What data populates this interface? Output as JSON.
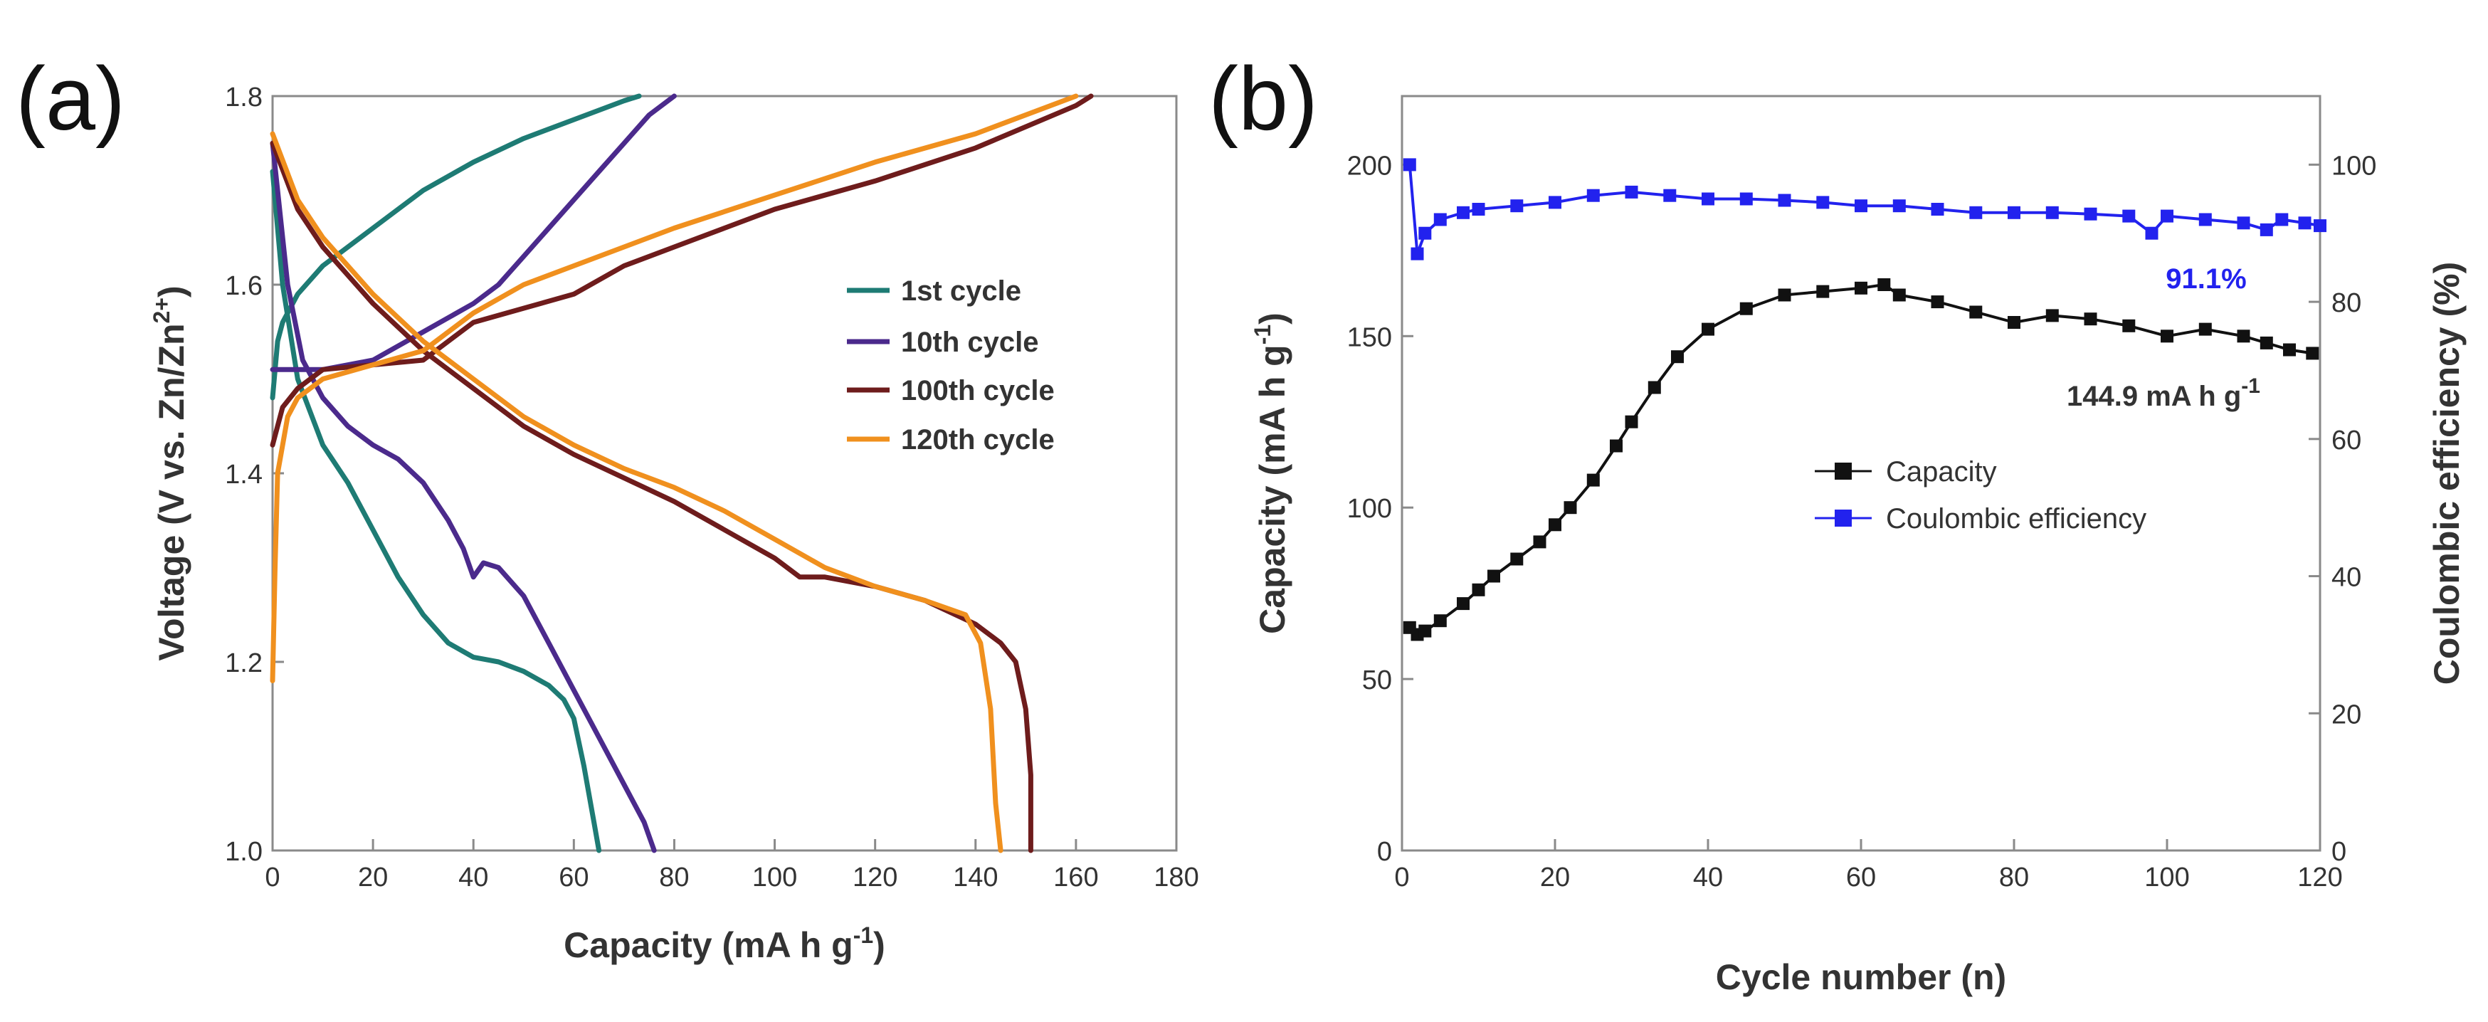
{
  "chart_data": [
    {
      "panel": "(a)",
      "type": "line",
      "xlabel": "Capacity (mA h g",
      "xlabel_sup": "-1",
      "xlabel_end": ")",
      "ylabel": "Voltage (V vs. Zn/Zn",
      "ylabel_sup": "2+",
      "ylabel_end": ")",
      "xlim": [
        0,
        180
      ],
      "ylim": [
        1.0,
        1.8
      ],
      "xticks": [
        0,
        20,
        40,
        60,
        80,
        100,
        120,
        140,
        160,
        180
      ],
      "yticks": [
        1.0,
        1.2,
        1.4,
        1.6,
        1.8
      ],
      "legend_position": "center-right",
      "series": [
        {
          "name": "1st cycle",
          "color": "#1e7b74",
          "discharge": [
            [
              0,
              1.72
            ],
            [
              2,
              1.6
            ],
            [
              5,
              1.5
            ],
            [
              10,
              1.43
            ],
            [
              15,
              1.39
            ],
            [
              20,
              1.34
            ],
            [
              25,
              1.29
            ],
            [
              30,
              1.25
            ],
            [
              35,
              1.22
            ],
            [
              40,
              1.205
            ],
            [
              45,
              1.2
            ],
            [
              50,
              1.19
            ],
            [
              55,
              1.175
            ],
            [
              58,
              1.16
            ],
            [
              60,
              1.14
            ],
            [
              62,
              1.09
            ],
            [
              64,
              1.03
            ],
            [
              65,
              1.0
            ]
          ],
          "charge": [
            [
              0,
              1.48
            ],
            [
              1,
              1.54
            ],
            [
              2,
              1.56
            ],
            [
              5,
              1.59
            ],
            [
              10,
              1.62
            ],
            [
              20,
              1.66
            ],
            [
              30,
              1.7
            ],
            [
              40,
              1.73
            ],
            [
              50,
              1.755
            ],
            [
              60,
              1.775
            ],
            [
              70,
              1.795
            ],
            [
              73,
              1.8
            ]
          ]
        },
        {
          "name": "10th cycle",
          "color": "#4b2a8c",
          "discharge": [
            [
              0,
              1.75
            ],
            [
              3,
              1.6
            ],
            [
              6,
              1.52
            ],
            [
              10,
              1.48
            ],
            [
              15,
              1.45
            ],
            [
              20,
              1.43
            ],
            [
              25,
              1.415
            ],
            [
              30,
              1.39
            ],
            [
              35,
              1.35
            ],
            [
              38,
              1.32
            ],
            [
              40,
              1.29
            ],
            [
              42,
              1.305
            ],
            [
              45,
              1.3
            ],
            [
              50,
              1.27
            ],
            [
              55,
              1.22
            ],
            [
              60,
              1.17
            ],
            [
              65,
              1.12
            ],
            [
              70,
              1.07
            ],
            [
              74,
              1.03
            ],
            [
              76,
              1.0
            ]
          ],
          "charge": [
            [
              0,
              1.51
            ],
            [
              10,
              1.51
            ],
            [
              20,
              1.52
            ],
            [
              30,
              1.55
            ],
            [
              40,
              1.58
            ],
            [
              45,
              1.6
            ],
            [
              50,
              1.63
            ],
            [
              55,
              1.66
            ],
            [
              60,
              1.69
            ],
            [
              65,
              1.72
            ],
            [
              70,
              1.75
            ],
            [
              75,
              1.78
            ],
            [
              80,
              1.8
            ]
          ]
        },
        {
          "name": "100th cycle",
          "color": "#6e1c1c",
          "discharge": [
            [
              0,
              1.75
            ],
            [
              5,
              1.68
            ],
            [
              10,
              1.64
            ],
            [
              20,
              1.58
            ],
            [
              30,
              1.53
            ],
            [
              40,
              1.49
            ],
            [
              50,
              1.45
            ],
            [
              60,
              1.42
            ],
            [
              70,
              1.395
            ],
            [
              80,
              1.37
            ],
            [
              90,
              1.34
            ],
            [
              100,
              1.31
            ],
            [
              105,
              1.29
            ],
            [
              110,
              1.29
            ],
            [
              120,
              1.28
            ],
            [
              130,
              1.265
            ],
            [
              140,
              1.24
            ],
            [
              145,
              1.22
            ],
            [
              148,
              1.2
            ],
            [
              150,
              1.15
            ],
            [
              151,
              1.08
            ],
            [
              151,
              1.0
            ]
          ],
          "charge": [
            [
              0,
              1.43
            ],
            [
              2,
              1.47
            ],
            [
              5,
              1.49
            ],
            [
              10,
              1.51
            ],
            [
              20,
              1.515
            ],
            [
              30,
              1.52
            ],
            [
              35,
              1.54
            ],
            [
              40,
              1.56
            ],
            [
              50,
              1.575
            ],
            [
              60,
              1.59
            ],
            [
              70,
              1.62
            ],
            [
              80,
              1.64
            ],
            [
              90,
              1.66
            ],
            [
              100,
              1.68
            ],
            [
              120,
              1.71
            ],
            [
              140,
              1.745
            ],
            [
              160,
              1.79
            ],
            [
              163,
              1.8
            ]
          ]
        },
        {
          "name": "120th cycle",
          "color": "#f0901e",
          "discharge": [
            [
              0,
              1.76
            ],
            [
              5,
              1.69
            ],
            [
              10,
              1.65
            ],
            [
              20,
              1.59
            ],
            [
              30,
              1.54
            ],
            [
              40,
              1.5
            ],
            [
              50,
              1.46
            ],
            [
              60,
              1.43
            ],
            [
              70,
              1.405
            ],
            [
              80,
              1.385
            ],
            [
              90,
              1.36
            ],
            [
              100,
              1.33
            ],
            [
              110,
              1.3
            ],
            [
              120,
              1.28
            ],
            [
              130,
              1.265
            ],
            [
              138,
              1.25
            ],
            [
              141,
              1.22
            ],
            [
              143,
              1.15
            ],
            [
              144,
              1.05
            ],
            [
              145,
              1.0
            ]
          ],
          "charge": [
            [
              0,
              1.18
            ],
            [
              0.5,
              1.3
            ],
            [
              1,
              1.4
            ],
            [
              3,
              1.46
            ],
            [
              5,
              1.48
            ],
            [
              10,
              1.5
            ],
            [
              20,
              1.515
            ],
            [
              30,
              1.53
            ],
            [
              40,
              1.57
            ],
            [
              50,
              1.6
            ],
            [
              60,
              1.62
            ],
            [
              80,
              1.66
            ],
            [
              100,
              1.695
            ],
            [
              120,
              1.73
            ],
            [
              140,
              1.76
            ],
            [
              160,
              1.8
            ]
          ]
        }
      ]
    },
    {
      "panel": "(b)",
      "type": "scatter",
      "xlabel": "Cycle number (n)",
      "ylabel": "Capacity (mA h g",
      "ylabel_sup": "-1",
      "ylabel_end": ")",
      "y2label": "Coulombic efficiency (%)",
      "xlim": [
        0,
        120
      ],
      "ylim": [
        0,
        220
      ],
      "y2lim": [
        0,
        110
      ],
      "xticks": [
        0,
        20,
        40,
        60,
        80,
        100,
        120
      ],
      "yticks": [
        0,
        50,
        100,
        150,
        200
      ],
      "y2ticks": [
        0,
        20,
        40,
        60,
        80,
        100
      ],
      "legend_position": "center-right",
      "series": [
        {
          "name": "Capacity",
          "color": "#111111",
          "axis": "left",
          "points": [
            [
              1,
              65
            ],
            [
              2,
              63
            ],
            [
              3,
              64
            ],
            [
              5,
              67
            ],
            [
              8,
              72
            ],
            [
              10,
              76
            ],
            [
              12,
              80
            ],
            [
              15,
              85
            ],
            [
              18,
              90
            ],
            [
              20,
              95
            ],
            [
              22,
              100
            ],
            [
              25,
              108
            ],
            [
              28,
              118
            ],
            [
              30,
              125
            ],
            [
              33,
              135
            ],
            [
              36,
              144
            ],
            [
              40,
              152
            ],
            [
              45,
              158
            ],
            [
              50,
              162
            ],
            [
              55,
              163
            ],
            [
              60,
              164
            ],
            [
              63,
              165
            ],
            [
              65,
              162
            ],
            [
              70,
              160
            ],
            [
              75,
              157
            ],
            [
              80,
              154
            ],
            [
              85,
              156
            ],
            [
              90,
              155
            ],
            [
              95,
              153
            ],
            [
              100,
              150
            ],
            [
              105,
              152
            ],
            [
              110,
              150
            ],
            [
              113,
              148
            ],
            [
              116,
              146
            ],
            [
              119,
              145
            ]
          ]
        },
        {
          "name": "Coulombic efficiency",
          "color": "#2222ee",
          "axis": "right",
          "points": [
            [
              1,
              100
            ],
            [
              2,
              87
            ],
            [
              3,
              90
            ],
            [
              5,
              92
            ],
            [
              8,
              93
            ],
            [
              10,
              93.5
            ],
            [
              15,
              94
            ],
            [
              20,
              94.5
            ],
            [
              25,
              95.5
            ],
            [
              30,
              96
            ],
            [
              35,
              95.5
            ],
            [
              40,
              95
            ],
            [
              45,
              95
            ],
            [
              50,
              94.8
            ],
            [
              55,
              94.5
            ],
            [
              60,
              94
            ],
            [
              65,
              94
            ],
            [
              70,
              93.5
            ],
            [
              75,
              93
            ],
            [
              80,
              93
            ],
            [
              85,
              93
            ],
            [
              90,
              92.8
            ],
            [
              95,
              92.5
            ],
            [
              98,
              90
            ],
            [
              100,
              92.5
            ],
            [
              105,
              92
            ],
            [
              110,
              91.5
            ],
            [
              113,
              90.5
            ],
            [
              115,
              92
            ],
            [
              118,
              91.5
            ],
            [
              120,
              91.1
            ]
          ]
        }
      ],
      "annotations": {
        "ce_final": "91.1%",
        "capacity_final_text": "144.9 mA h g",
        "capacity_final_sup": "-1"
      }
    }
  ]
}
